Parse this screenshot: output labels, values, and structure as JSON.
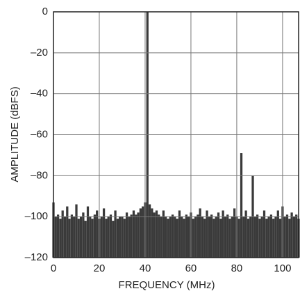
{
  "chart_data": {
    "type": "spectrum",
    "xlabel": "FREQUENCY (MHz)",
    "ylabel": "AMPLITUDE (dBFS)",
    "color": "#3a3a3a",
    "grid": true,
    "xlim": [
      0,
      107
    ],
    "ylim": [
      -120,
      0
    ],
    "xticks": [
      0,
      20,
      40,
      60,
      80,
      100
    ],
    "yticks": [
      0,
      {
        "value": -20,
        "label": "–20"
      },
      {
        "value": -40,
        "label": "–40"
      },
      {
        "value": -60,
        "label": "–60"
      },
      {
        "value": -80,
        "label": "–80"
      },
      {
        "value": -100,
        "label": "–100"
      },
      {
        "value": -120,
        "label": "–120"
      }
    ],
    "x": [
      0,
      1,
      2,
      3,
      4,
      5,
      6,
      7,
      8,
      9,
      10,
      11,
      12,
      13,
      14,
      15,
      16,
      17,
      18,
      19,
      20,
      21,
      22,
      23,
      24,
      25,
      26,
      27,
      28,
      29,
      30,
      31,
      32,
      33,
      34,
      35,
      36,
      37,
      38,
      39,
      40,
      41,
      42,
      43,
      44,
      45,
      46,
      47,
      48,
      49,
      50,
      51,
      52,
      53,
      54,
      55,
      56,
      57,
      58,
      59,
      60,
      61,
      62,
      63,
      64,
      65,
      66,
      67,
      68,
      69,
      70,
      71,
      72,
      73,
      74,
      75,
      76,
      77,
      78,
      79,
      80,
      81,
      82,
      83,
      84,
      85,
      86,
      87,
      88,
      89,
      90,
      91,
      92,
      93,
      94,
      95,
      96,
      97,
      98,
      99,
      100,
      101,
      102,
      103,
      104,
      105,
      106,
      107
    ],
    "values": [
      -93,
      -100,
      -99,
      -101,
      -97,
      -100,
      -95,
      -101,
      -99,
      -100,
      -94,
      -101,
      -100,
      -98,
      -102,
      -95,
      -100,
      -101,
      -99,
      -97,
      -101,
      -100,
      -96,
      -101,
      -100,
      -99,
      -102,
      -97,
      -101,
      -100,
      -100,
      -101,
      -98,
      -100,
      -99,
      -97,
      -99,
      -98,
      -96,
      -95,
      -93,
      0,
      -94,
      -96,
      -98,
      -97,
      -99,
      -100,
      -97,
      -100,
      -101,
      -100,
      -99,
      -100,
      -101,
      -97,
      -100,
      -101,
      -99,
      -100,
      -98,
      -101,
      -100,
      -99,
      -96,
      -100,
      -101,
      -97,
      -100,
      -99,
      -101,
      -100,
      -98,
      -101,
      -97,
      -100,
      -99,
      -101,
      -100,
      -96,
      -100,
      -101,
      -69,
      -100,
      -97,
      -101,
      -100,
      -80,
      -100,
      -99,
      -101,
      -100,
      -97,
      -101,
      -100,
      -99,
      -101,
      -100,
      -97,
      -101,
      -95,
      -100,
      -99,
      -101,
      -98,
      -100,
      -99,
      -101
    ]
  }
}
